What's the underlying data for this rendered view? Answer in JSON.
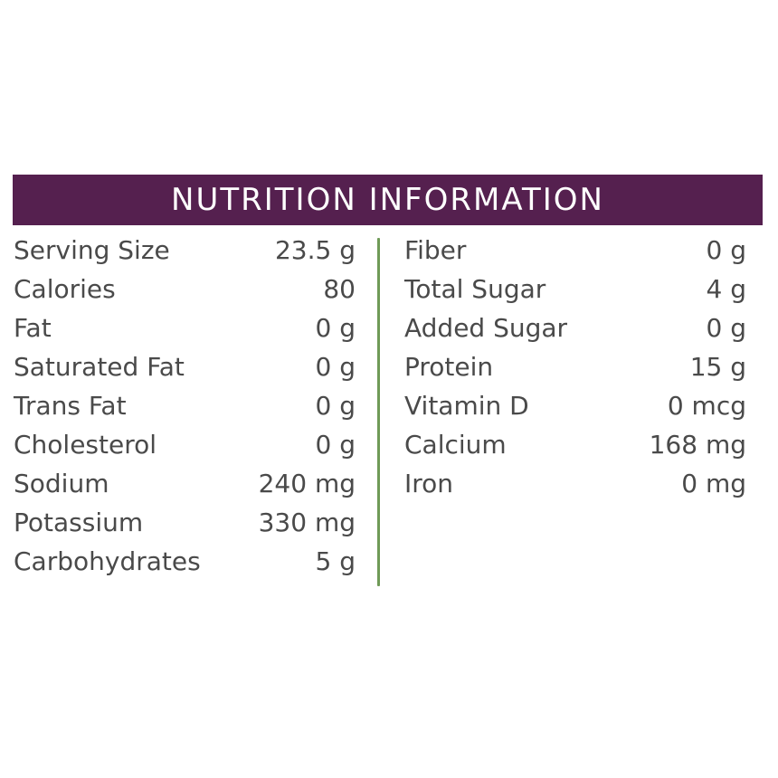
{
  "title": "NUTRITION INFORMATION",
  "colors": {
    "header_background": "#55204f",
    "header_text": "#ffffff",
    "divider": "#6f9a57",
    "body_text": "#4a4a4a"
  },
  "left_column": [
    {
      "label": "Serving Size",
      "value": "23.5 g"
    },
    {
      "label": "Calories",
      "value": "80"
    },
    {
      "label": "Fat",
      "value": "0 g"
    },
    {
      "label": "Saturated Fat",
      "value": "0 g"
    },
    {
      "label": "Trans Fat",
      "value": "0 g"
    },
    {
      "label": "Cholesterol",
      "value": "0 g"
    },
    {
      "label": "Sodium",
      "value": "240 mg"
    },
    {
      "label": "Potassium",
      "value": "330 mg"
    },
    {
      "label": "Carbohydrates",
      "value": "5 g"
    }
  ],
  "right_column": [
    {
      "label": "Fiber",
      "value": "0 g"
    },
    {
      "label": "Total Sugar",
      "value": "4 g"
    },
    {
      "label": "Added Sugar",
      "value": "0 g"
    },
    {
      "label": "Protein",
      "value": "15 g"
    },
    {
      "label": "Vitamin D",
      "value": "0 mcg"
    },
    {
      "label": "Calcium",
      "value": "168 mg"
    },
    {
      "label": "Iron",
      "value": "0 mg"
    }
  ]
}
